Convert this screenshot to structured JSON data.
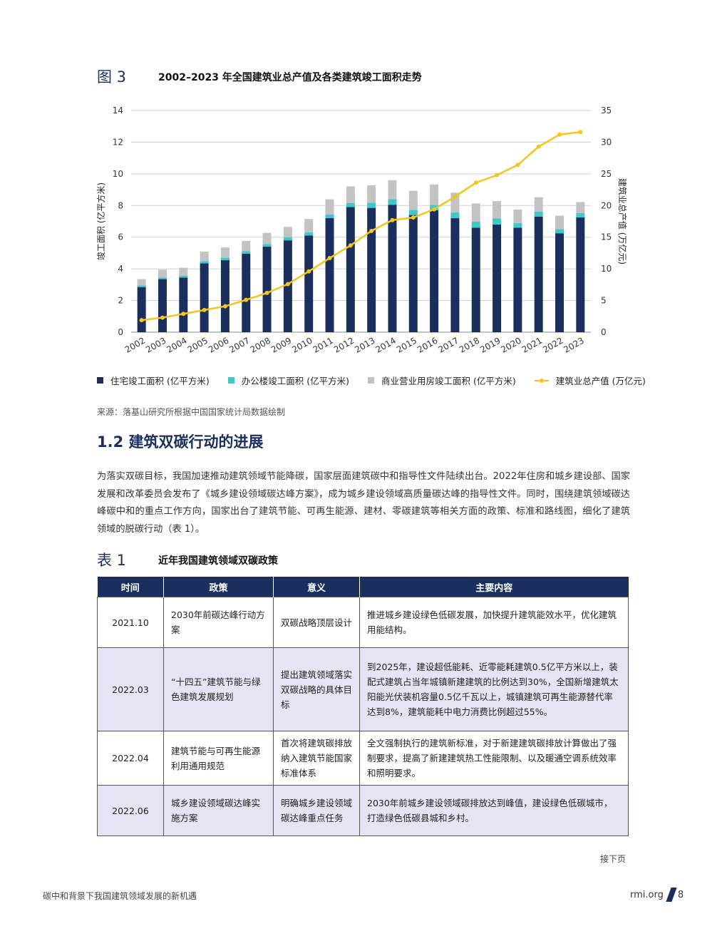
{
  "figure": {
    "label": "图 3",
    "title": "2002–2023 年全国建筑业总产值及各类建筑竣工面积走势"
  },
  "chart_data": {
    "type": "bar",
    "stacked": true,
    "categories": [
      "2002",
      "2003",
      "2004",
      "2005",
      "2006",
      "2007",
      "2008",
      "2009",
      "2010",
      "2011",
      "2012",
      "2013",
      "2014",
      "2015",
      "2016",
      "2017",
      "2018",
      "2019",
      "2020",
      "2021",
      "2022",
      "2023"
    ],
    "series": [
      {
        "name": "住宅竣工面积 (亿平方米)",
        "axis": "left",
        "color": "#1b2f5e",
        "values": [
          2.85,
          3.35,
          3.45,
          4.35,
          4.55,
          4.95,
          5.4,
          5.8,
          6.1,
          7.2,
          7.9,
          7.85,
          8.05,
          7.4,
          7.7,
          7.2,
          6.6,
          6.8,
          6.6,
          7.3,
          6.25,
          7.25
        ]
      },
      {
        "name": "办公楼竣工面积 (亿平方米)",
        "axis": "left",
        "color": "#3ec8c8",
        "values": [
          0.1,
          0.1,
          0.12,
          0.14,
          0.15,
          0.16,
          0.17,
          0.2,
          0.2,
          0.24,
          0.26,
          0.33,
          0.35,
          0.33,
          0.33,
          0.36,
          0.38,
          0.38,
          0.3,
          0.32,
          0.26,
          0.27
        ]
      },
      {
        "name": "商业营业用房竣工面积 (亿平方米)",
        "axis": "left",
        "color": "#c3c3c3",
        "values": [
          0.4,
          0.5,
          0.5,
          0.6,
          0.65,
          0.65,
          0.7,
          0.65,
          0.85,
          0.95,
          1.05,
          1.1,
          1.2,
          1.2,
          1.3,
          1.25,
          1.15,
          1.1,
          0.85,
          0.9,
          0.85,
          0.7
        ]
      },
      {
        "name": "建筑业总产值 (万亿元)",
        "axis": "right",
        "type": "line",
        "color": "#f5c518",
        "values": [
          1.9,
          2.3,
          2.9,
          3.5,
          4.1,
          5.1,
          6.2,
          7.6,
          9.6,
          11.7,
          13.7,
          16.0,
          17.7,
          18.1,
          19.4,
          21.4,
          23.6,
          24.8,
          26.4,
          29.3,
          31.2,
          31.6
        ]
      }
    ],
    "yleft": {
      "label": "竣工面积 (亿平方米)",
      "range": [
        0,
        14
      ],
      "ticks": [
        0,
        2,
        4,
        6,
        8,
        10,
        12,
        14
      ]
    },
    "yright": {
      "label": "建筑业总产值 (万亿元)",
      "range": [
        0,
        35
      ],
      "ticks": [
        0,
        5,
        10,
        15,
        20,
        25,
        30,
        35
      ]
    },
    "legend_position": "bottom",
    "grid": "horizontal"
  },
  "source": "来源：落基山研究所根据中国国家统计局数据绘制",
  "section": {
    "title": "1.2 建筑双碳行动的进展",
    "paragraph": "为落实双碳目标，我国加速推动建筑领域节能降碳，国家层面建筑碳中和指导性文件陆续出台。2022年住房和城乡建设部、国家发展和改革委员会发布了《城乡建设领域碳达峰方案》，成为城乡建设领域高质量碳达峰的指导性文件。同时，围绕建筑领域碳达峰碳中和的重点工作方向，国家出台了建筑节能、可再生能源、建材、零碳建筑等相关方面的政策、标准和路线图，细化了建筑领域的脱碳行动（表 1）。"
  },
  "table": {
    "label": "表 1",
    "title": "近年我国建筑领域双碳政策",
    "headers": [
      "时间",
      "政策",
      "意义",
      "主要内容"
    ],
    "rows": [
      {
        "time": "2021.10",
        "policy": "2030年前碳达峰行动方案",
        "meaning": "双碳战略顶层设计",
        "content": "推进城乡建设绿色低碳发展，加快提升建筑能效水平，优化建筑用能结构。"
      },
      {
        "time": "2022.03",
        "policy": "“十四五”建筑节能与绿色建筑发展规划",
        "meaning": "提出建筑领域落实双碳战略的具体目标",
        "content": "到2025年，建设超低能耗、近零能耗建筑0.5亿平方米以上，装配式建筑占当年城镇新建建筑的比例达到30%，全国新增建筑太阳能光伏装机容量0.5亿千瓦以上，城镇建筑可再生能源替代率达到8%，建筑能耗中电力消费比例超过55%。"
      },
      {
        "time": "2022.04",
        "policy": "建筑节能与可再生能源利用通用规范",
        "meaning": "首次将建筑碳排放纳入建筑节能国家标准体系",
        "content": "全文强制执行的建筑新标准，对于新建建筑碳排放计算做出了强制要求，提高了新建建筑热工性能限制、以及暖通空调系统效率和照明要求。"
      },
      {
        "time": "2022.06",
        "policy": "城乡建设领域碳达峰实施方案",
        "meaning": "明确城乡建设领域碳达峰重点任务",
        "content": "2030年前城乡建设领域碳排放达到峰值，建设绿色低碳城市，打造绿色低碳县城和乡村。"
      }
    ]
  },
  "next_page": "接下页",
  "footer": {
    "left": "碳中和背景下我国建筑领域发展的新机遇",
    "site": "rmi.org",
    "page": "8"
  }
}
